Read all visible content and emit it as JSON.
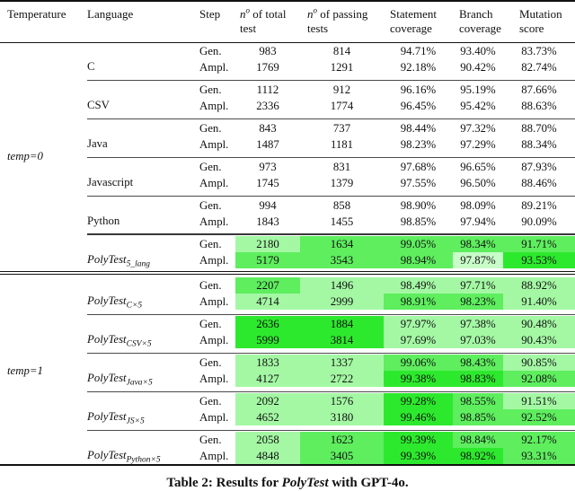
{
  "header": {
    "temperature": "Temperature",
    "language": "Language",
    "step": "Step",
    "n_total": {
      "n": "n",
      "sup": "o",
      "rest": " of total test"
    },
    "n_passing": {
      "n": "n",
      "sup": "o",
      "rest": " of passing tests"
    },
    "statement": "Statement coverage",
    "branch": "Branch coverage",
    "mutation": "Mutation score"
  },
  "colors": {
    "g1": "#c8fcc8",
    "g2": "#a4f8a4",
    "g3": "#5eee5e",
    "g4": "#2de92d"
  },
  "sections": [
    {
      "temperature": "temp=0",
      "groups": [
        {
          "language": "C",
          "sub": "",
          "rows": [
            {
              "step": "Gen.",
              "cells": [
                {
                  "v": "983"
                },
                {
                  "v": "814"
                },
                {
                  "v": "94.71%"
                },
                {
                  "v": "93.40%"
                },
                {
                  "v": "83.73%"
                }
              ]
            },
            {
              "step": "Ampl.",
              "cells": [
                {
                  "v": "1769"
                },
                {
                  "v": "1291"
                },
                {
                  "v": "92.18%"
                },
                {
                  "v": "90.42%"
                },
                {
                  "v": "82.74%"
                }
              ]
            }
          ]
        },
        {
          "language": "CSV",
          "sub": "",
          "rows": [
            {
              "step": "Gen.",
              "cells": [
                {
                  "v": "1112"
                },
                {
                  "v": "912"
                },
                {
                  "v": "96.16%"
                },
                {
                  "v": "95.19%"
                },
                {
                  "v": "87.66%"
                }
              ]
            },
            {
              "step": "Ampl.",
              "cells": [
                {
                  "v": "2336"
                },
                {
                  "v": "1774"
                },
                {
                  "v": "96.45%"
                },
                {
                  "v": "95.42%"
                },
                {
                  "v": "88.63%"
                }
              ]
            }
          ]
        },
        {
          "language": "Java",
          "sub": "",
          "rows": [
            {
              "step": "Gen.",
              "cells": [
                {
                  "v": "843"
                },
                {
                  "v": "737"
                },
                {
                  "v": "98.44%"
                },
                {
                  "v": "97.32%"
                },
                {
                  "v": "88.70%"
                }
              ]
            },
            {
              "step": "Ampl.",
              "cells": [
                {
                  "v": "1487"
                },
                {
                  "v": "1181"
                },
                {
                  "v": "98.23%"
                },
                {
                  "v": "97.29%"
                },
                {
                  "v": "88.34%"
                }
              ]
            }
          ]
        },
        {
          "language": "Javascript",
          "sub": "",
          "rows": [
            {
              "step": "Gen.",
              "cells": [
                {
                  "v": "973"
                },
                {
                  "v": "831"
                },
                {
                  "v": "97.68%"
                },
                {
                  "v": "96.65%"
                },
                {
                  "v": "87.93%"
                }
              ]
            },
            {
              "step": "Ampl.",
              "cells": [
                {
                  "v": "1745"
                },
                {
                  "v": "1379"
                },
                {
                  "v": "97.55%"
                },
                {
                  "v": "96.50%"
                },
                {
                  "v": "88.46%"
                }
              ]
            }
          ]
        },
        {
          "language": "Python",
          "sub": "",
          "rows": [
            {
              "step": "Gen.",
              "cells": [
                {
                  "v": "994"
                },
                {
                  "v": "858"
                },
                {
                  "v": "98.90%"
                },
                {
                  "v": "98.09%"
                },
                {
                  "v": "89.21%"
                }
              ]
            },
            {
              "step": "Ampl.",
              "cells": [
                {
                  "v": "1843"
                },
                {
                  "v": "1455"
                },
                {
                  "v": "98.85%"
                },
                {
                  "v": "97.94%"
                },
                {
                  "v": "90.09%"
                }
              ]
            }
          ]
        },
        {
          "language": "PolyTest",
          "sub": "5_lang",
          "heavy": true,
          "rows": [
            {
              "step": "Gen.",
              "cells": [
                {
                  "v": "2180",
                  "c": "g2"
                },
                {
                  "v": "1634",
                  "c": "g3"
                },
                {
                  "v": "99.05%",
                  "c": "g3"
                },
                {
                  "v": "98.34%",
                  "c": "g3"
                },
                {
                  "v": "91.71%",
                  "c": "g3"
                }
              ]
            },
            {
              "step": "Ampl.",
              "cells": [
                {
                  "v": "5179",
                  "c": "g3"
                },
                {
                  "v": "3543",
                  "c": "g3"
                },
                {
                  "v": "98.94%",
                  "c": "g3"
                },
                {
                  "v": "97.87%",
                  "c": "g1"
                },
                {
                  "v": "93.53%",
                  "c": "g4"
                }
              ]
            }
          ]
        }
      ]
    },
    {
      "temperature": "temp=1",
      "groups": [
        {
          "language": "PolyTest",
          "sub": "C×5",
          "rows": [
            {
              "step": "Gen.",
              "cells": [
                {
                  "v": "2207",
                  "c": "g3"
                },
                {
                  "v": "1496",
                  "c": "g2"
                },
                {
                  "v": "98.49%",
                  "c": "g2"
                },
                {
                  "v": "97.71%",
                  "c": "g2"
                },
                {
                  "v": "88.92%",
                  "c": "g2"
                }
              ]
            },
            {
              "step": "Ampl.",
              "cells": [
                {
                  "v": "4714",
                  "c": "g2"
                },
                {
                  "v": "2999",
                  "c": "g2"
                },
                {
                  "v": "98.91%",
                  "c": "g3"
                },
                {
                  "v": "98.23%",
                  "c": "g3"
                },
                {
                  "v": "91.40%",
                  "c": "g2"
                }
              ]
            }
          ]
        },
        {
          "language": "PolyTest",
          "sub": "CSV×5",
          "rows": [
            {
              "step": "Gen.",
              "cells": [
                {
                  "v": "2636",
                  "c": "g4"
                },
                {
                  "v": "1884",
                  "c": "g4"
                },
                {
                  "v": "97.97%",
                  "c": "g2"
                },
                {
                  "v": "97.38%",
                  "c": "g2"
                },
                {
                  "v": "90.48%",
                  "c": "g2"
                }
              ]
            },
            {
              "step": "Ampl.",
              "cells": [
                {
                  "v": "5999",
                  "c": "g4"
                },
                {
                  "v": "3814",
                  "c": "g4"
                },
                {
                  "v": "97.69%",
                  "c": "g2"
                },
                {
                  "v": "97.03%",
                  "c": "g2"
                },
                {
                  "v": "90.43%",
                  "c": "g2"
                }
              ]
            }
          ]
        },
        {
          "language": "PolyTest",
          "sub": "Java×5",
          "rows": [
            {
              "step": "Gen.",
              "cells": [
                {
                  "v": "1833",
                  "c": "g2"
                },
                {
                  "v": "1337",
                  "c": "g2"
                },
                {
                  "v": "99.06%",
                  "c": "g3"
                },
                {
                  "v": "98.43%",
                  "c": "g3"
                },
                {
                  "v": "90.85%",
                  "c": "g2"
                }
              ]
            },
            {
              "step": "Ampl.",
              "cells": [
                {
                  "v": "4127",
                  "c": "g2"
                },
                {
                  "v": "2722",
                  "c": "g2"
                },
                {
                  "v": "99.38%",
                  "c": "g4"
                },
                {
                  "v": "98.83%",
                  "c": "g4"
                },
                {
                  "v": "92.08%",
                  "c": "g3"
                }
              ]
            }
          ]
        },
        {
          "language": "PolyTest",
          "sub": "JS×5",
          "rows": [
            {
              "step": "Gen.",
              "cells": [
                {
                  "v": "2092",
                  "c": "g2"
                },
                {
                  "v": "1576",
                  "c": "g2"
                },
                {
                  "v": "99.28%",
                  "c": "g4"
                },
                {
                  "v": "98.55%",
                  "c": "g3"
                },
                {
                  "v": "91.51%",
                  "c": "g2"
                }
              ]
            },
            {
              "step": "Ampl.",
              "cells": [
                {
                  "v": "4652",
                  "c": "g2"
                },
                {
                  "v": "3180",
                  "c": "g2"
                },
                {
                  "v": "99.46%",
                  "c": "g4"
                },
                {
                  "v": "98.85%",
                  "c": "g3"
                },
                {
                  "v": "92.52%",
                  "c": "g3"
                }
              ]
            }
          ]
        },
        {
          "language": "PolyTest",
          "sub": "Python×5",
          "rows": [
            {
              "step": "Gen.",
              "cells": [
                {
                  "v": "2058",
                  "c": "g2"
                },
                {
                  "v": "1623",
                  "c": "g3"
                },
                {
                  "v": "99.39%",
                  "c": "g4"
                },
                {
                  "v": "98.84%",
                  "c": "g3"
                },
                {
                  "v": "92.17%",
                  "c": "g3"
                }
              ]
            },
            {
              "step": "Ampl.",
              "cells": [
                {
                  "v": "4848",
                  "c": "g2"
                },
                {
                  "v": "3405",
                  "c": "g3"
                },
                {
                  "v": "99.39%",
                  "c": "g4"
                },
                {
                  "v": "98.92%",
                  "c": "g4"
                },
                {
                  "v": "93.31%",
                  "c": "g3"
                }
              ]
            }
          ]
        }
      ]
    }
  ],
  "caption": {
    "prefix": "Table 2: Results for ",
    "italic": "PolyTest",
    "suffix": " with GPT-4o."
  }
}
